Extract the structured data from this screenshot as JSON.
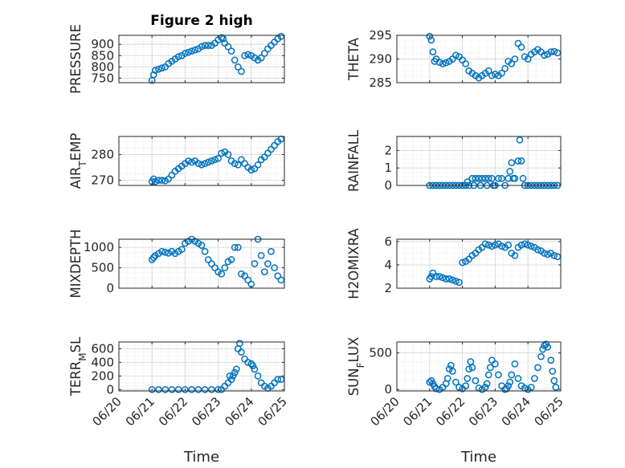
{
  "figure": {
    "title": "Figure 2 high"
  },
  "colors": {
    "marker": "#0072BD",
    "grid": "#d9d9d9",
    "axis": "#262626"
  },
  "xaxis": {
    "label": "Time",
    "ticks": [
      20,
      21,
      22,
      23,
      24,
      25
    ],
    "tick_labels": [
      "06/20",
      "06/21",
      "06/22",
      "06/23",
      "06/24",
      "06/25"
    ]
  },
  "chart_data": [
    {
      "type": "scatter",
      "title": "Figure 2 high",
      "xlabel": "",
      "ylabel": "PRESSURE",
      "xlim": [
        20,
        25
      ],
      "ylim": [
        730,
        940
      ],
      "yticks": [
        750,
        800,
        850,
        900
      ],
      "ytick_labels": [
        "750",
        "800",
        "850",
        "900"
      ],
      "grid": true,
      "x": [
        21.0,
        21.05,
        21.1,
        21.2,
        21.3,
        21.4,
        21.5,
        21.6,
        21.7,
        21.8,
        21.9,
        22.0,
        22.1,
        22.2,
        22.3,
        22.4,
        22.5,
        22.6,
        22.7,
        22.8,
        22.9,
        23.0,
        23.1,
        23.15,
        23.2,
        23.3,
        23.4,
        23.5,
        23.6,
        23.7,
        23.8,
        23.9,
        24.0,
        24.1,
        24.2,
        24.3,
        24.4,
        24.5,
        24.6,
        24.7,
        24.8,
        24.9
      ],
      "y": [
        740,
        765,
        785,
        790,
        795,
        800,
        815,
        825,
        835,
        845,
        850,
        860,
        865,
        870,
        875,
        880,
        890,
        895,
        895,
        895,
        905,
        920,
        930,
        925,
        905,
        890,
        870,
        830,
        800,
        780,
        850,
        855,
        850,
        840,
        830,
        840,
        860,
        880,
        895,
        910,
        925,
        935
      ]
    },
    {
      "type": "scatter",
      "ylabel": "THETA",
      "xlim": [
        20,
        25
      ],
      "ylim": [
        285,
        295
      ],
      "yticks": [
        285,
        290,
        295
      ],
      "ytick_labels": [
        "285",
        "290",
        "295"
      ],
      "grid": true,
      "x": [
        21.0,
        21.05,
        21.1,
        21.15,
        21.2,
        21.3,
        21.4,
        21.5,
        21.6,
        21.7,
        21.8,
        21.9,
        22.0,
        22.1,
        22.2,
        22.3,
        22.4,
        22.5,
        22.6,
        22.7,
        22.8,
        22.9,
        23.0,
        23.1,
        23.2,
        23.3,
        23.4,
        23.5,
        23.6,
        23.7,
        23.8,
        23.9,
        24.0,
        24.1,
        24.2,
        24.3,
        24.4,
        24.5,
        24.6,
        24.7,
        24.8,
        24.9
      ],
      "y": [
        294.8,
        294.0,
        291.5,
        289.5,
        290.0,
        289.3,
        289.0,
        289.2,
        289.5,
        290.0,
        290.8,
        290.5,
        289.8,
        289.0,
        287.5,
        287.0,
        286.5,
        286.0,
        286.5,
        287.0,
        287.5,
        286.5,
        286.8,
        286.5,
        287.0,
        288.0,
        289.5,
        289.0,
        290.0,
        293.3,
        292.5,
        290.5,
        290.0,
        291.0,
        291.5,
        292.0,
        291.5,
        290.8,
        291.0,
        291.5,
        291.6,
        291.3
      ]
    },
    {
      "type": "scatter",
      "ylabel": "AIR_TEMP",
      "xlim": [
        20,
        25
      ],
      "ylim": [
        268,
        287
      ],
      "yticks": [
        270,
        280
      ],
      "ytick_labels": [
        "270",
        "280"
      ],
      "grid": true,
      "x": [
        21.0,
        21.05,
        21.1,
        21.2,
        21.3,
        21.4,
        21.5,
        21.6,
        21.7,
        21.8,
        21.9,
        22.0,
        22.1,
        22.2,
        22.3,
        22.4,
        22.5,
        22.6,
        22.7,
        22.8,
        22.9,
        23.0,
        23.1,
        23.2,
        23.3,
        23.4,
        23.5,
        23.6,
        23.7,
        23.8,
        23.9,
        24.0,
        24.1,
        24.2,
        24.3,
        24.4,
        24.5,
        24.6,
        24.7,
        24.8,
        24.9
      ],
      "y": [
        269.5,
        270.5,
        269.5,
        270.0,
        270.0,
        269.8,
        270.5,
        272.0,
        273.5,
        274.5,
        275.5,
        276.5,
        277.5,
        277.0,
        277.5,
        276.5,
        276.0,
        276.5,
        277.0,
        277.5,
        278.0,
        278.5,
        280.5,
        281.0,
        280.0,
        277.5,
        276.5,
        276.0,
        278.0,
        276.5,
        275.0,
        274.0,
        274.5,
        276.0,
        278.0,
        279.0,
        280.5,
        282.0,
        283.5,
        285.0,
        286.0
      ]
    },
    {
      "type": "scatter",
      "ylabel": "RAINFALL",
      "xlim": [
        20,
        25
      ],
      "ylim": [
        0,
        2.8
      ],
      "yticks": [
        0,
        1,
        2
      ],
      "ytick_labels": [
        "0",
        "1",
        "2"
      ],
      "grid": true,
      "x": [
        21.0,
        21.1,
        21.2,
        21.3,
        21.4,
        21.5,
        21.6,
        21.7,
        21.8,
        21.9,
        22.0,
        22.1,
        22.15,
        22.2,
        22.3,
        22.35,
        22.4,
        22.5,
        22.55,
        22.6,
        22.7,
        22.75,
        22.8,
        22.9,
        22.95,
        23.0,
        23.1,
        23.2,
        23.3,
        23.4,
        23.45,
        23.5,
        23.55,
        23.6,
        23.7,
        23.75,
        23.8,
        23.85,
        23.9,
        24.0,
        24.1,
        24.2,
        24.3,
        24.4,
        24.5,
        24.6,
        24.7,
        24.8,
        24.9
      ],
      "y": [
        0,
        0,
        0,
        0,
        0,
        0,
        0,
        0,
        0,
        0,
        0,
        0,
        0.2,
        0,
        0.4,
        0,
        0.4,
        0.4,
        0,
        0.4,
        0.4,
        0,
        0.4,
        0.4,
        0,
        0,
        0.4,
        0.4,
        0,
        0.4,
        0.8,
        1.3,
        0.4,
        0.4,
        1.4,
        2.6,
        1.4,
        0.4,
        0,
        0,
        0,
        0,
        0,
        0,
        0,
        0,
        0,
        0,
        0
      ]
    },
    {
      "type": "scatter",
      "ylabel": "MIXDEPTH",
      "xlim": [
        20,
        25
      ],
      "ylim": [
        0,
        1200
      ],
      "yticks": [
        0,
        500,
        1000
      ],
      "ytick_labels": [
        "0",
        "500",
        "1000"
      ],
      "grid": true,
      "x": [
        21.0,
        21.05,
        21.1,
        21.2,
        21.3,
        21.4,
        21.5,
        21.6,
        21.7,
        21.8,
        21.9,
        22.0,
        22.1,
        22.2,
        22.3,
        22.4,
        22.5,
        22.6,
        22.7,
        22.8,
        22.9,
        23.0,
        23.1,
        23.2,
        23.3,
        23.4,
        23.5,
        23.6,
        23.7,
        23.8,
        23.9,
        24.0,
        24.1,
        24.2,
        24.3,
        24.4,
        24.5,
        24.6,
        24.7,
        24.8,
        24.9
      ],
      "y": [
        700,
        750,
        800,
        850,
        900,
        880,
        860,
        900,
        850,
        900,
        950,
        1100,
        1150,
        1200,
        1150,
        1100,
        1050,
        900,
        700,
        600,
        500,
        400,
        350,
        500,
        650,
        700,
        1000,
        1000,
        350,
        300,
        200,
        100,
        600,
        1200,
        800,
        400,
        600,
        900,
        500,
        300,
        200
      ]
    },
    {
      "type": "scatter",
      "ylabel": "H2OMIXRA",
      "xlim": [
        20,
        25
      ],
      "ylim": [
        2,
        6.2
      ],
      "yticks": [
        2,
        4,
        6
      ],
      "ytick_labels": [
        "2",
        "4",
        "6"
      ],
      "grid": true,
      "x": [
        21.0,
        21.05,
        21.1,
        21.2,
        21.3,
        21.4,
        21.5,
        21.6,
        21.7,
        21.8,
        21.9,
        22.0,
        22.1,
        22.2,
        22.3,
        22.4,
        22.5,
        22.6,
        22.7,
        22.8,
        22.9,
        23.0,
        23.1,
        23.2,
        23.3,
        23.4,
        23.5,
        23.6,
        23.7,
        23.8,
        23.9,
        24.0,
        24.1,
        24.2,
        24.3,
        24.4,
        24.5,
        24.6,
        24.7,
        24.8,
        24.9
      ],
      "y": [
        2.8,
        3.0,
        3.3,
        3.0,
        3.0,
        2.9,
        2.8,
        2.8,
        2.7,
        2.6,
        2.5,
        4.2,
        4.3,
        4.5,
        4.8,
        5.0,
        5.3,
        5.5,
        5.8,
        5.7,
        5.6,
        5.7,
        5.8,
        5.6,
        5.5,
        5.7,
        5.0,
        4.8,
        5.5,
        5.7,
        5.8,
        5.7,
        5.6,
        5.5,
        5.3,
        5.2,
        5.0,
        4.9,
        5.0,
        4.8,
        4.7
      ]
    },
    {
      "type": "scatter",
      "ylabel": "TERR_MSL",
      "xlim": [
        20,
        25
      ],
      "ylim": [
        -20,
        700
      ],
      "yticks": [
        0,
        200,
        400,
        600
      ],
      "ytick_labels": [
        "0",
        "200",
        "400",
        "600"
      ],
      "grid": true,
      "x": [
        21.0,
        21.2,
        21.4,
        21.6,
        21.8,
        22.0,
        22.2,
        22.4,
        22.6,
        22.8,
        23.0,
        23.1,
        23.2,
        23.3,
        23.35,
        23.4,
        23.45,
        23.5,
        23.55,
        23.6,
        23.65,
        23.7,
        23.8,
        23.9,
        24.0,
        24.05,
        24.1,
        24.2,
        24.3,
        24.4,
        24.5,
        24.6,
        24.7,
        24.8,
        24.9
      ],
      "y": [
        0,
        0,
        0,
        0,
        0,
        0,
        0,
        0,
        0,
        0,
        0,
        0,
        50,
        100,
        200,
        150,
        200,
        250,
        300,
        600,
        680,
        550,
        450,
        400,
        380,
        350,
        300,
        200,
        100,
        50,
        20,
        50,
        100,
        150,
        150
      ]
    },
    {
      "type": "scatter",
      "ylabel": "SUN_FLUX",
      "xlim": [
        20,
        25
      ],
      "ylim": [
        -20,
        650
      ],
      "yticks": [
        0,
        500
      ],
      "ytick_labels": [
        "0",
        "500"
      ],
      "grid": true,
      "x": [
        21.0,
        21.05,
        21.1,
        21.15,
        21.2,
        21.3,
        21.4,
        21.5,
        21.55,
        21.6,
        21.65,
        21.7,
        21.8,
        21.9,
        22.0,
        22.1,
        22.15,
        22.2,
        22.25,
        22.3,
        22.4,
        22.5,
        22.6,
        22.7,
        22.75,
        22.8,
        22.85,
        22.9,
        23.0,
        23.1,
        23.2,
        23.3,
        23.35,
        23.4,
        23.45,
        23.5,
        23.6,
        23.7,
        23.8,
        23.9,
        24.0,
        24.1,
        24.2,
        24.3,
        24.4,
        24.45,
        24.5,
        24.55,
        24.6,
        24.7,
        24.75,
        24.8,
        24.85
      ],
      "y": [
        100,
        120,
        80,
        40,
        10,
        0,
        30,
        80,
        150,
        280,
        330,
        250,
        100,
        30,
        10,
        50,
        150,
        280,
        380,
        300,
        120,
        20,
        0,
        30,
        80,
        200,
        300,
        400,
        350,
        200,
        50,
        0,
        10,
        50,
        100,
        200,
        350,
        150,
        50,
        20,
        0,
        30,
        150,
        300,
        450,
        550,
        600,
        620,
        580,
        400,
        250,
        120,
        30
      ]
    }
  ]
}
